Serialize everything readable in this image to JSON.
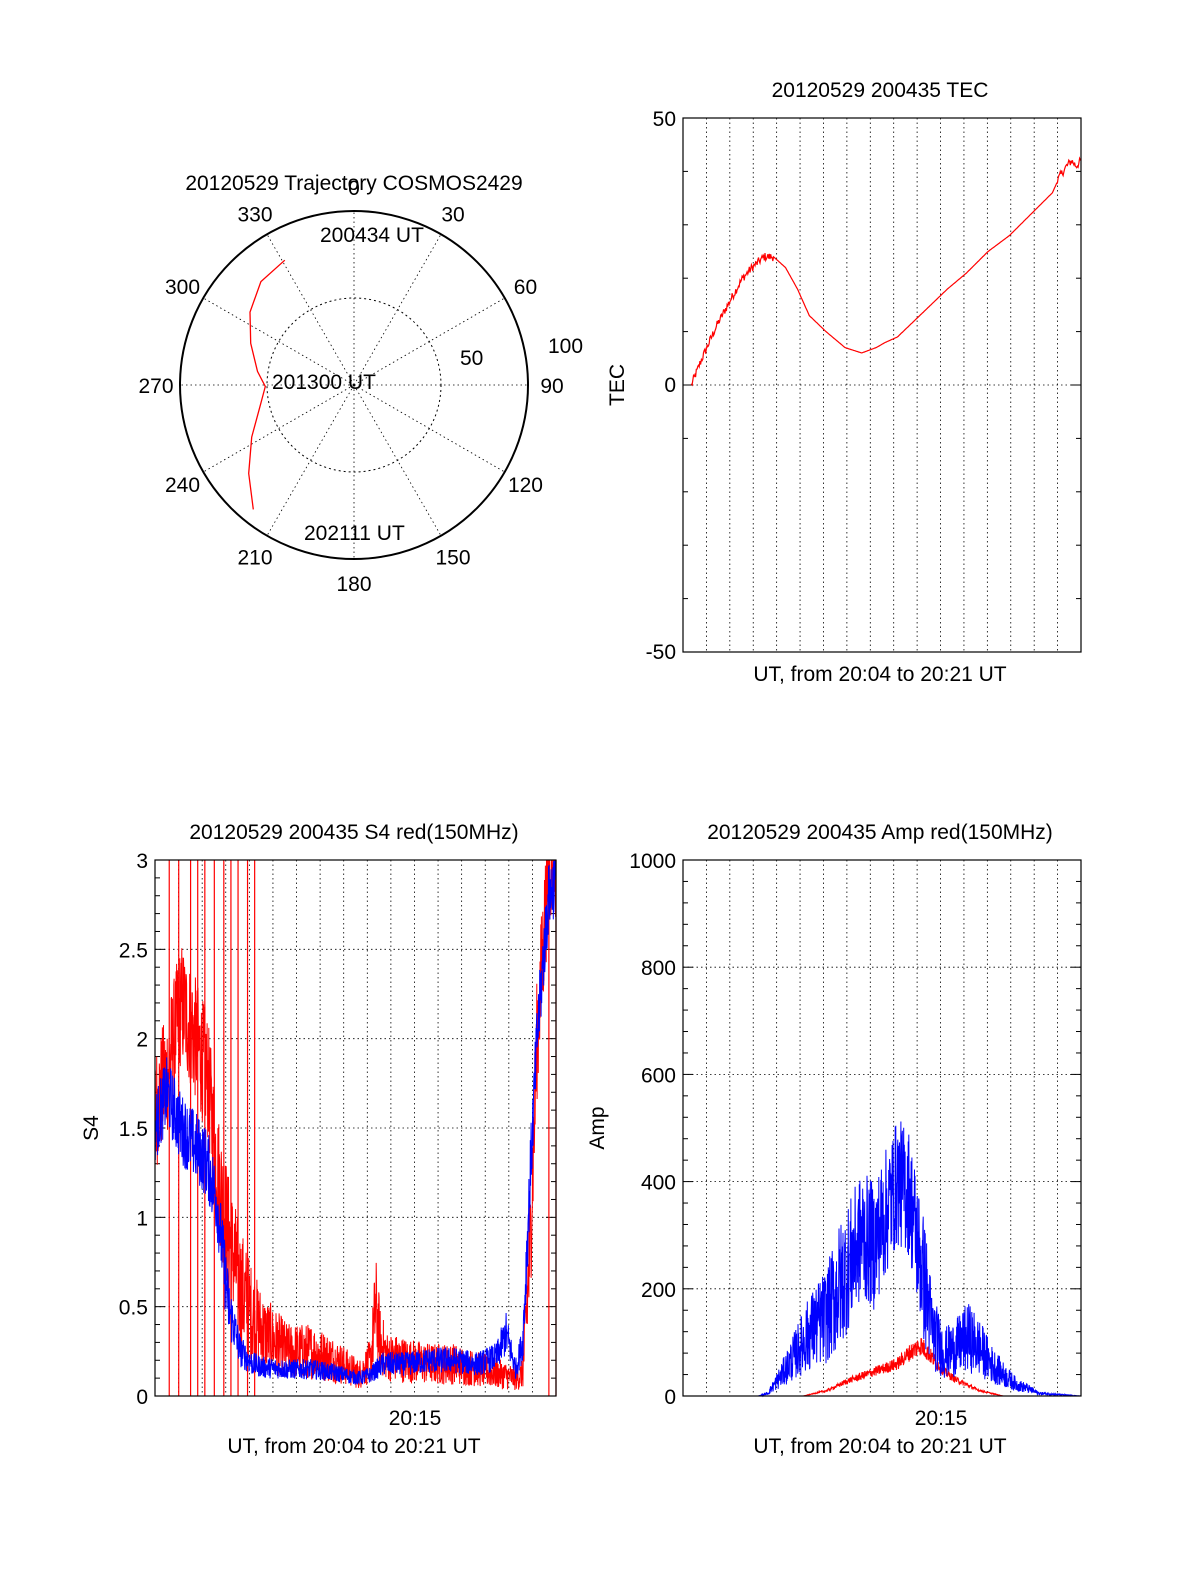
{
  "colors": {
    "red": "#ff0000",
    "blue": "#0000ff",
    "axis": "#000000"
  },
  "chart_data": [
    {
      "type": "polar",
      "title": "20120529 Trajectory COSMOS2429",
      "angle_labels": [
        "0",
        "30",
        "60",
        "90",
        "120",
        "150",
        "180",
        "210",
        "240",
        "270",
        "300",
        "330"
      ],
      "radius_labels": [
        "50",
        "100"
      ],
      "time_labels": {
        "start": "200434 UT",
        "mid": "201300 UT",
        "end": "202111 UT"
      },
      "trajectory": [
        {
          "az": 331,
          "r": 82
        },
        {
          "az": 318,
          "r": 80
        },
        {
          "az": 305,
          "r": 73
        },
        {
          "az": 292,
          "r": 64
        },
        {
          "az": 278,
          "r": 56
        },
        {
          "az": 269,
          "r": 51
        },
        {
          "az": 258,
          "r": 55
        },
        {
          "az": 243,
          "r": 66
        },
        {
          "az": 230,
          "r": 79
        },
        {
          "az": 219,
          "r": 92
        }
      ]
    },
    {
      "type": "line",
      "title": "20120529 200435 TEC",
      "xlabel": "UT, from 20:04 to 20:21 UT",
      "ylabel": "TEC",
      "ylim": [
        -50,
        50
      ],
      "xlim_min": [
        4.5,
        21.2
      ],
      "yticks": [
        "50",
        "0",
        "-50"
      ],
      "grid": true,
      "series": [
        {
          "color": "red",
          "x": [
            4.85,
            5.3,
            5.9,
            6.5,
            7.0,
            7.4,
            7.9,
            8.3,
            8.8,
            9.3,
            9.8,
            10.5,
            11.3,
            12.0,
            12.6,
            13.0,
            13.5,
            14.2,
            14.9,
            15.6,
            16.4,
            17.3,
            18.2,
            19.1,
            20.0,
            20.3,
            20.6,
            20.8,
            21.0,
            21.2
          ],
          "y": [
            0,
            5,
            11,
            16,
            20,
            22,
            24,
            24,
            22,
            18,
            13,
            10,
            7,
            6,
            7,
            8,
            9,
            12,
            15,
            18,
            21,
            25,
            28,
            32,
            36,
            39,
            41,
            42,
            41,
            42
          ]
        }
      ]
    },
    {
      "type": "line",
      "title": "20120529 200435 S4 red(150MHz)",
      "xlabel": "UT, from 20:04 to 20:21 UT",
      "ylabel": "S4",
      "ylim": [
        0,
        3
      ],
      "xlim_min": [
        4.4,
        21.3
      ],
      "xtick_label": "20:15",
      "yticks": [
        "3",
        "2.5",
        "2",
        "1.5",
        "1",
        "0.5",
        "0"
      ],
      "grid": true,
      "series": [
        {
          "color": "red",
          "x": [
            4.4,
            4.9,
            5.5,
            6.1,
            6.6,
            7.0,
            7.5,
            8.0,
            8.5,
            9.0,
            10.0,
            11.0,
            12.0,
            13.0,
            13.5,
            13.7,
            13.9,
            14.2,
            15.0,
            16.0,
            17.0,
            18.0,
            19.0,
            19.6,
            19.9,
            20.2,
            20.5,
            20.8,
            21.0,
            21.3
          ],
          "y": [
            1.6,
            1.8,
            2.2,
            2.0,
            1.8,
            1.3,
            0.9,
            0.6,
            0.45,
            0.35,
            0.25,
            0.25,
            0.2,
            0.12,
            0.2,
            0.5,
            0.3,
            0.22,
            0.2,
            0.18,
            0.18,
            0.15,
            0.12,
            0.1,
            0.12,
            0.8,
            2.0,
            2.6,
            3.0,
            3.0
          ],
          "noise": 0.35
        },
        {
          "color": "blue",
          "x": [
            4.4,
            4.9,
            5.5,
            6.1,
            6.6,
            7.0,
            7.5,
            8.0,
            8.5,
            9.0,
            10.0,
            11.0,
            12.0,
            13.0,
            13.5,
            14.0,
            15.0,
            16.0,
            17.0,
            18.0,
            18.8,
            19.2,
            19.6,
            19.9,
            20.2,
            20.5,
            20.8,
            21.0,
            21.3
          ],
          "y": [
            1.5,
            1.7,
            1.5,
            1.4,
            1.3,
            1.1,
            0.5,
            0.25,
            0.18,
            0.16,
            0.15,
            0.15,
            0.13,
            0.1,
            0.12,
            0.18,
            0.18,
            0.2,
            0.2,
            0.18,
            0.22,
            0.35,
            0.15,
            0.3,
            1.2,
            2.0,
            2.5,
            2.8,
            2.9
          ],
          "noise": 0.2
        }
      ],
      "red_spikes_x": [
        5.0,
        5.4,
        5.9,
        6.2,
        6.5,
        6.9,
        7.3,
        7.6,
        7.9,
        8.3,
        8.6,
        21.0,
        21.3
      ]
    },
    {
      "type": "line",
      "title": "20120529 200435 Amp red(150MHz)",
      "xlabel": "UT, from 20:04 to 20:21 UT",
      "ylabel": "Amp",
      "ylim": [
        0,
        1000
      ],
      "xlim_min": [
        4.4,
        21.3
      ],
      "xtick_label": "20:15",
      "yticks": [
        "1000",
        "800",
        "600",
        "400",
        "200",
        "0"
      ],
      "grid": true,
      "series": [
        {
          "color": "red",
          "x": [
            4.4,
            9.5,
            10.5,
            11.5,
            12.5,
            13.5,
            14.0,
            14.5,
            15.0,
            15.5,
            16.0,
            16.5,
            17.0,
            17.5,
            18.0,
            21.3
          ],
          "y": [
            0,
            0,
            10,
            30,
            45,
            60,
            80,
            95,
            70,
            45,
            30,
            20,
            10,
            5,
            0,
            0
          ],
          "noise": 40
        },
        {
          "color": "blue",
          "x": [
            4.4,
            7.6,
            8.0,
            8.6,
            9.2,
            9.8,
            10.5,
            11.0,
            11.5,
            12.0,
            12.5,
            13.0,
            13.5,
            14.0,
            14.5,
            15.0,
            15.5,
            16.0,
            16.5,
            17.0,
            17.5,
            18.0,
            18.3,
            18.6,
            19.0,
            19.5,
            21.3
          ],
          "y": [
            0,
            0,
            5,
            40,
            80,
            120,
            150,
            200,
            250,
            300,
            280,
            340,
            400,
            380,
            250,
            120,
            80,
            90,
            110,
            90,
            60,
            40,
            30,
            20,
            15,
            5,
            0
          ],
          "noise": 120
        }
      ]
    }
  ]
}
